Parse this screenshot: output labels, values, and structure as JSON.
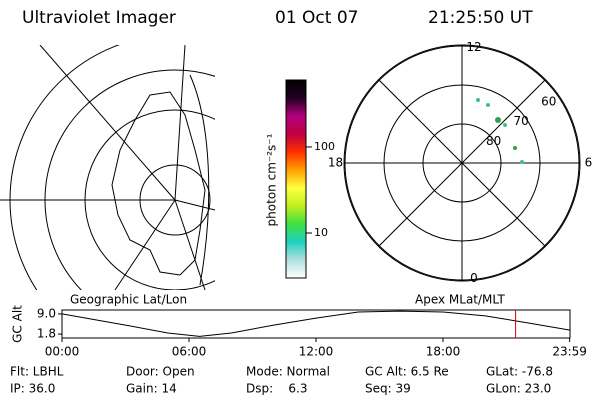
{
  "header": {
    "title": "Ultraviolet Imager",
    "date": "01 Oct 07",
    "time": "21:25:50 UT"
  },
  "colorbar": {
    "label": "photon cm⁻²s⁻¹",
    "log": true,
    "ylim": [
      3,
      600
    ],
    "yticks": [
      10,
      100
    ],
    "colors": [
      "#ffffff",
      "#b0e0e0",
      "#20d0c0",
      "#40e040",
      "#c0f020",
      "#ffff40",
      "#ffa000",
      "#ff3000",
      "#c00040",
      "#b00080",
      "#200020",
      "#000000"
    ]
  },
  "polar": {
    "hour_labels": [
      12,
      6,
      18,
      0
    ],
    "lat_labels": [
      60,
      70,
      80
    ],
    "rings": [
      80,
      70,
      60
    ]
  },
  "map": {
    "title": "Geographic Lat/Lon"
  },
  "apex": {
    "title": "Apex MLat/MLT"
  },
  "timeline": {
    "ylabel": "GC Alt",
    "ylim": [
      0.4,
      10.4
    ],
    "yticks": [
      1.8,
      {
        "value": 9,
        "label": "9.0"
      }
    ],
    "xlim": [
      0,
      24
    ],
    "xticks": [
      {
        "value": 0,
        "label": "00:00"
      },
      {
        "value": 6,
        "label": "06:00"
      },
      {
        "value": 12,
        "label": "12:00"
      },
      {
        "value": 18,
        "label": "18:00"
      },
      {
        "value": 23.983,
        "label": "23:59"
      }
    ],
    "x": [
      0,
      3,
      5,
      6.5,
      8,
      10,
      12,
      14,
      16,
      18,
      20,
      22,
      24
    ],
    "values": [
      9.0,
      5.0,
      2.2,
      1.0,
      2.2,
      5.0,
      7.5,
      9.7,
      10.0,
      9.7,
      8.3,
      5.8,
      3.2
    ],
    "color": "#000000",
    "marker_x": 21.43,
    "marker_color": "#d00000"
  },
  "footer": [
    [
      "Flt: LBHL",
      "Door: Open",
      "Mode: Normal",
      "GC Alt: 6.5 Re",
      "GLat: -76.8"
    ],
    [
      "IP: 36.0",
      "Gain: 14",
      "Dsp:    6.3",
      "Seq: 39",
      "GLon: 23.0"
    ]
  ]
}
